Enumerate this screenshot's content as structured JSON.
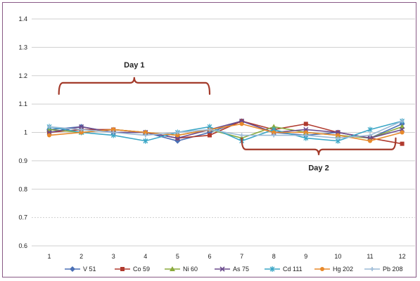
{
  "chart_data": {
    "type": "line",
    "title": "",
    "xlabel": "",
    "ylabel": "",
    "x": [
      1,
      2,
      3,
      4,
      5,
      6,
      7,
      8,
      9,
      10,
      11,
      12
    ],
    "xticks": [
      "1",
      "2",
      "3",
      "4",
      "5",
      "6",
      "7",
      "8",
      "9",
      "10",
      "11",
      "12"
    ],
    "ylim": [
      0.6,
      1.4
    ],
    "yticks": [
      "0.6",
      "0.7",
      "0.8",
      "0.9",
      "1",
      "1.1",
      "1.2",
      "1.3",
      "1.4"
    ],
    "grid": true,
    "legend_position": "bottom",
    "series": [
      {
        "name": "V 51",
        "color": "#4a6fb5",
        "marker": "diamond",
        "values": [
          1.01,
          1.02,
          1.0,
          1.0,
          0.97,
          1.0,
          1.04,
          1.0,
          0.99,
          1.0,
          0.98,
          1.03
        ]
      },
      {
        "name": "Co 59",
        "color": "#b03a2e",
        "marker": "square",
        "values": [
          1.0,
          1.01,
          1.01,
          1.0,
          0.98,
          0.99,
          1.04,
          1.01,
          1.03,
          1.0,
          0.98,
          0.96
        ]
      },
      {
        "name": "Ni 60",
        "color": "#8aaa3c",
        "marker": "triangle",
        "values": [
          1.01,
          1.0,
          1.01,
          1.0,
          0.99,
          1.01,
          0.98,
          1.02,
          1.0,
          0.99,
          0.98,
          1.02
        ]
      },
      {
        "name": "As 75",
        "color": "#6a4a8c",
        "marker": "x",
        "values": [
          1.0,
          1.02,
          1.0,
          1.0,
          0.98,
          1.01,
          1.04,
          1.0,
          1.01,
          1.0,
          0.98,
          1.01
        ]
      },
      {
        "name": "Cd 111",
        "color": "#3aa6c6",
        "marker": "star",
        "values": [
          1.02,
          1.0,
          0.99,
          0.97,
          1.0,
          1.02,
          0.97,
          1.01,
          0.98,
          0.97,
          1.01,
          1.04
        ]
      },
      {
        "name": "Hg 202",
        "color": "#e8892a",
        "marker": "circle",
        "values": [
          0.99,
          1.0,
          1.01,
          1.0,
          0.99,
          1.01,
          1.03,
          1.0,
          1.0,
          0.99,
          0.97,
          1.0
        ]
      },
      {
        "name": "Pb 208",
        "color": "#9bbad6",
        "marker": "plus",
        "values": [
          1.02,
          1.01,
          1.0,
          0.99,
          1.0,
          1.01,
          0.99,
          0.99,
          0.99,
          0.98,
          0.99,
          1.04
        ]
      }
    ],
    "annotations": [
      {
        "label": "Day 1",
        "bracket_from_x": 1.3,
        "bracket_to_x": 6.0,
        "bracket_y": 1.175,
        "opening": "down",
        "label_position": "above"
      },
      {
        "label": "Day 2",
        "bracket_from_x": 7.0,
        "bracket_to_x": 11.8,
        "bracket_y": 0.94,
        "opening": "up",
        "label_position": "below"
      }
    ]
  }
}
